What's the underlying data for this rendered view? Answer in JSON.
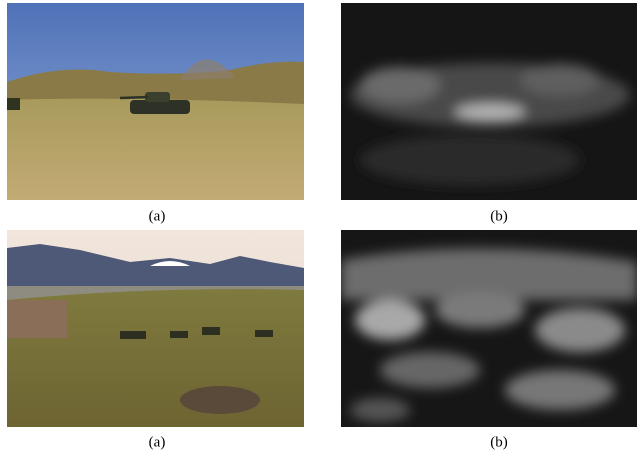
{
  "panels": [
    {
      "caption": "(a)"
    },
    {
      "caption": "(b)"
    },
    {
      "caption": "(a)"
    },
    {
      "caption": "(b)"
    }
  ]
}
